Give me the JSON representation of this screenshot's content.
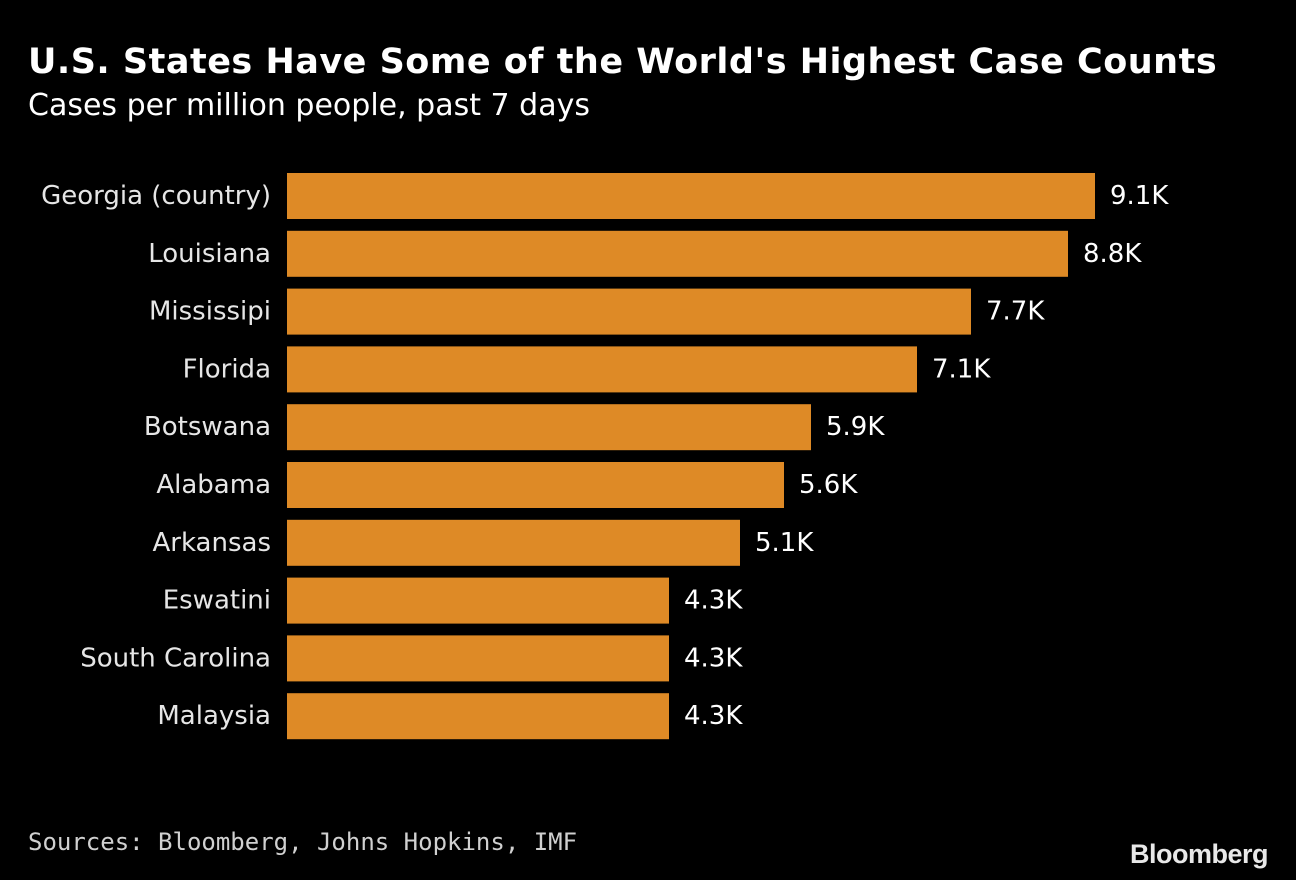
{
  "header": {
    "title": "U.S. States Have Some of the World's Highest Case Counts",
    "subtitle": "Cases per million people, past 7 days"
  },
  "footer": {
    "source": "Sources: Bloomberg, Johns Hopkins, IMF",
    "brand": "Bloomberg"
  },
  "colors": {
    "background": "#000000",
    "bar": "#DE8A26",
    "text": "#FFFFFF"
  },
  "chart_data": {
    "type": "bar",
    "orientation": "horizontal",
    "title": "U.S. States Have Some of the World's Highest Case Counts",
    "subtitle": "Cases per million people, past 7 days",
    "categories": [
      "Georgia (country)",
      "Louisiana",
      "Mississipi",
      "Florida",
      "Botswana",
      "Alabama",
      "Arkansas",
      "Eswatini",
      "South Carolina",
      "Malaysia"
    ],
    "values": [
      9100,
      8800,
      7700,
      7100,
      5900,
      5600,
      5100,
      4300,
      4300,
      4300
    ],
    "value_labels": [
      "9.1K",
      "8.8K",
      "7.7K",
      "7.1K",
      "5.9K",
      "5.6K",
      "5.1K",
      "4.3K",
      "4.3K",
      "4.3K"
    ],
    "xlim": [
      0,
      9100
    ],
    "grid": false,
    "legend": "none"
  }
}
